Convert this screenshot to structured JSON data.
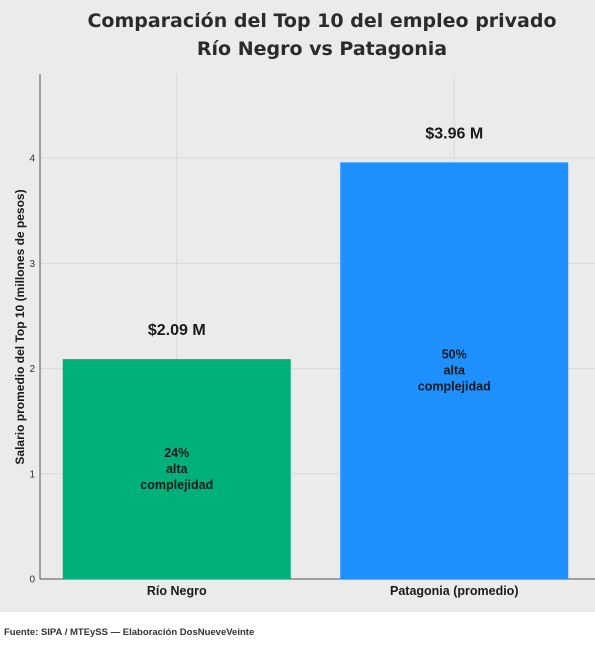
{
  "chart_data": {
    "type": "bar",
    "title_lines": [
      "Comparación del Top 10 del empleo privado",
      "Río Negro vs Patagonia"
    ],
    "xlabel": "",
    "ylabel": "Salario promedio del Top 10 (millones de pesos)",
    "ylim": [
      0,
      4.8
    ],
    "yticks": [
      0,
      1,
      2,
      3,
      4
    ],
    "categories": [
      "Río Negro",
      "Patagonia (promedio)"
    ],
    "values": [
      2.09,
      3.96
    ],
    "value_labels": [
      "$2.09 M",
      "$3.96 M"
    ],
    "inner_labels": [
      [
        "24%",
        "alta",
        "complejidad"
      ],
      [
        "50%",
        "alta",
        "complejidad"
      ]
    ],
    "colors": [
      "#00b07a",
      "#1e90ff"
    ],
    "grid": true,
    "legend": "none"
  },
  "footer": {
    "source": "Fuente: SIPA / MTEySS — Elaboración DosNueveVeinte"
  }
}
